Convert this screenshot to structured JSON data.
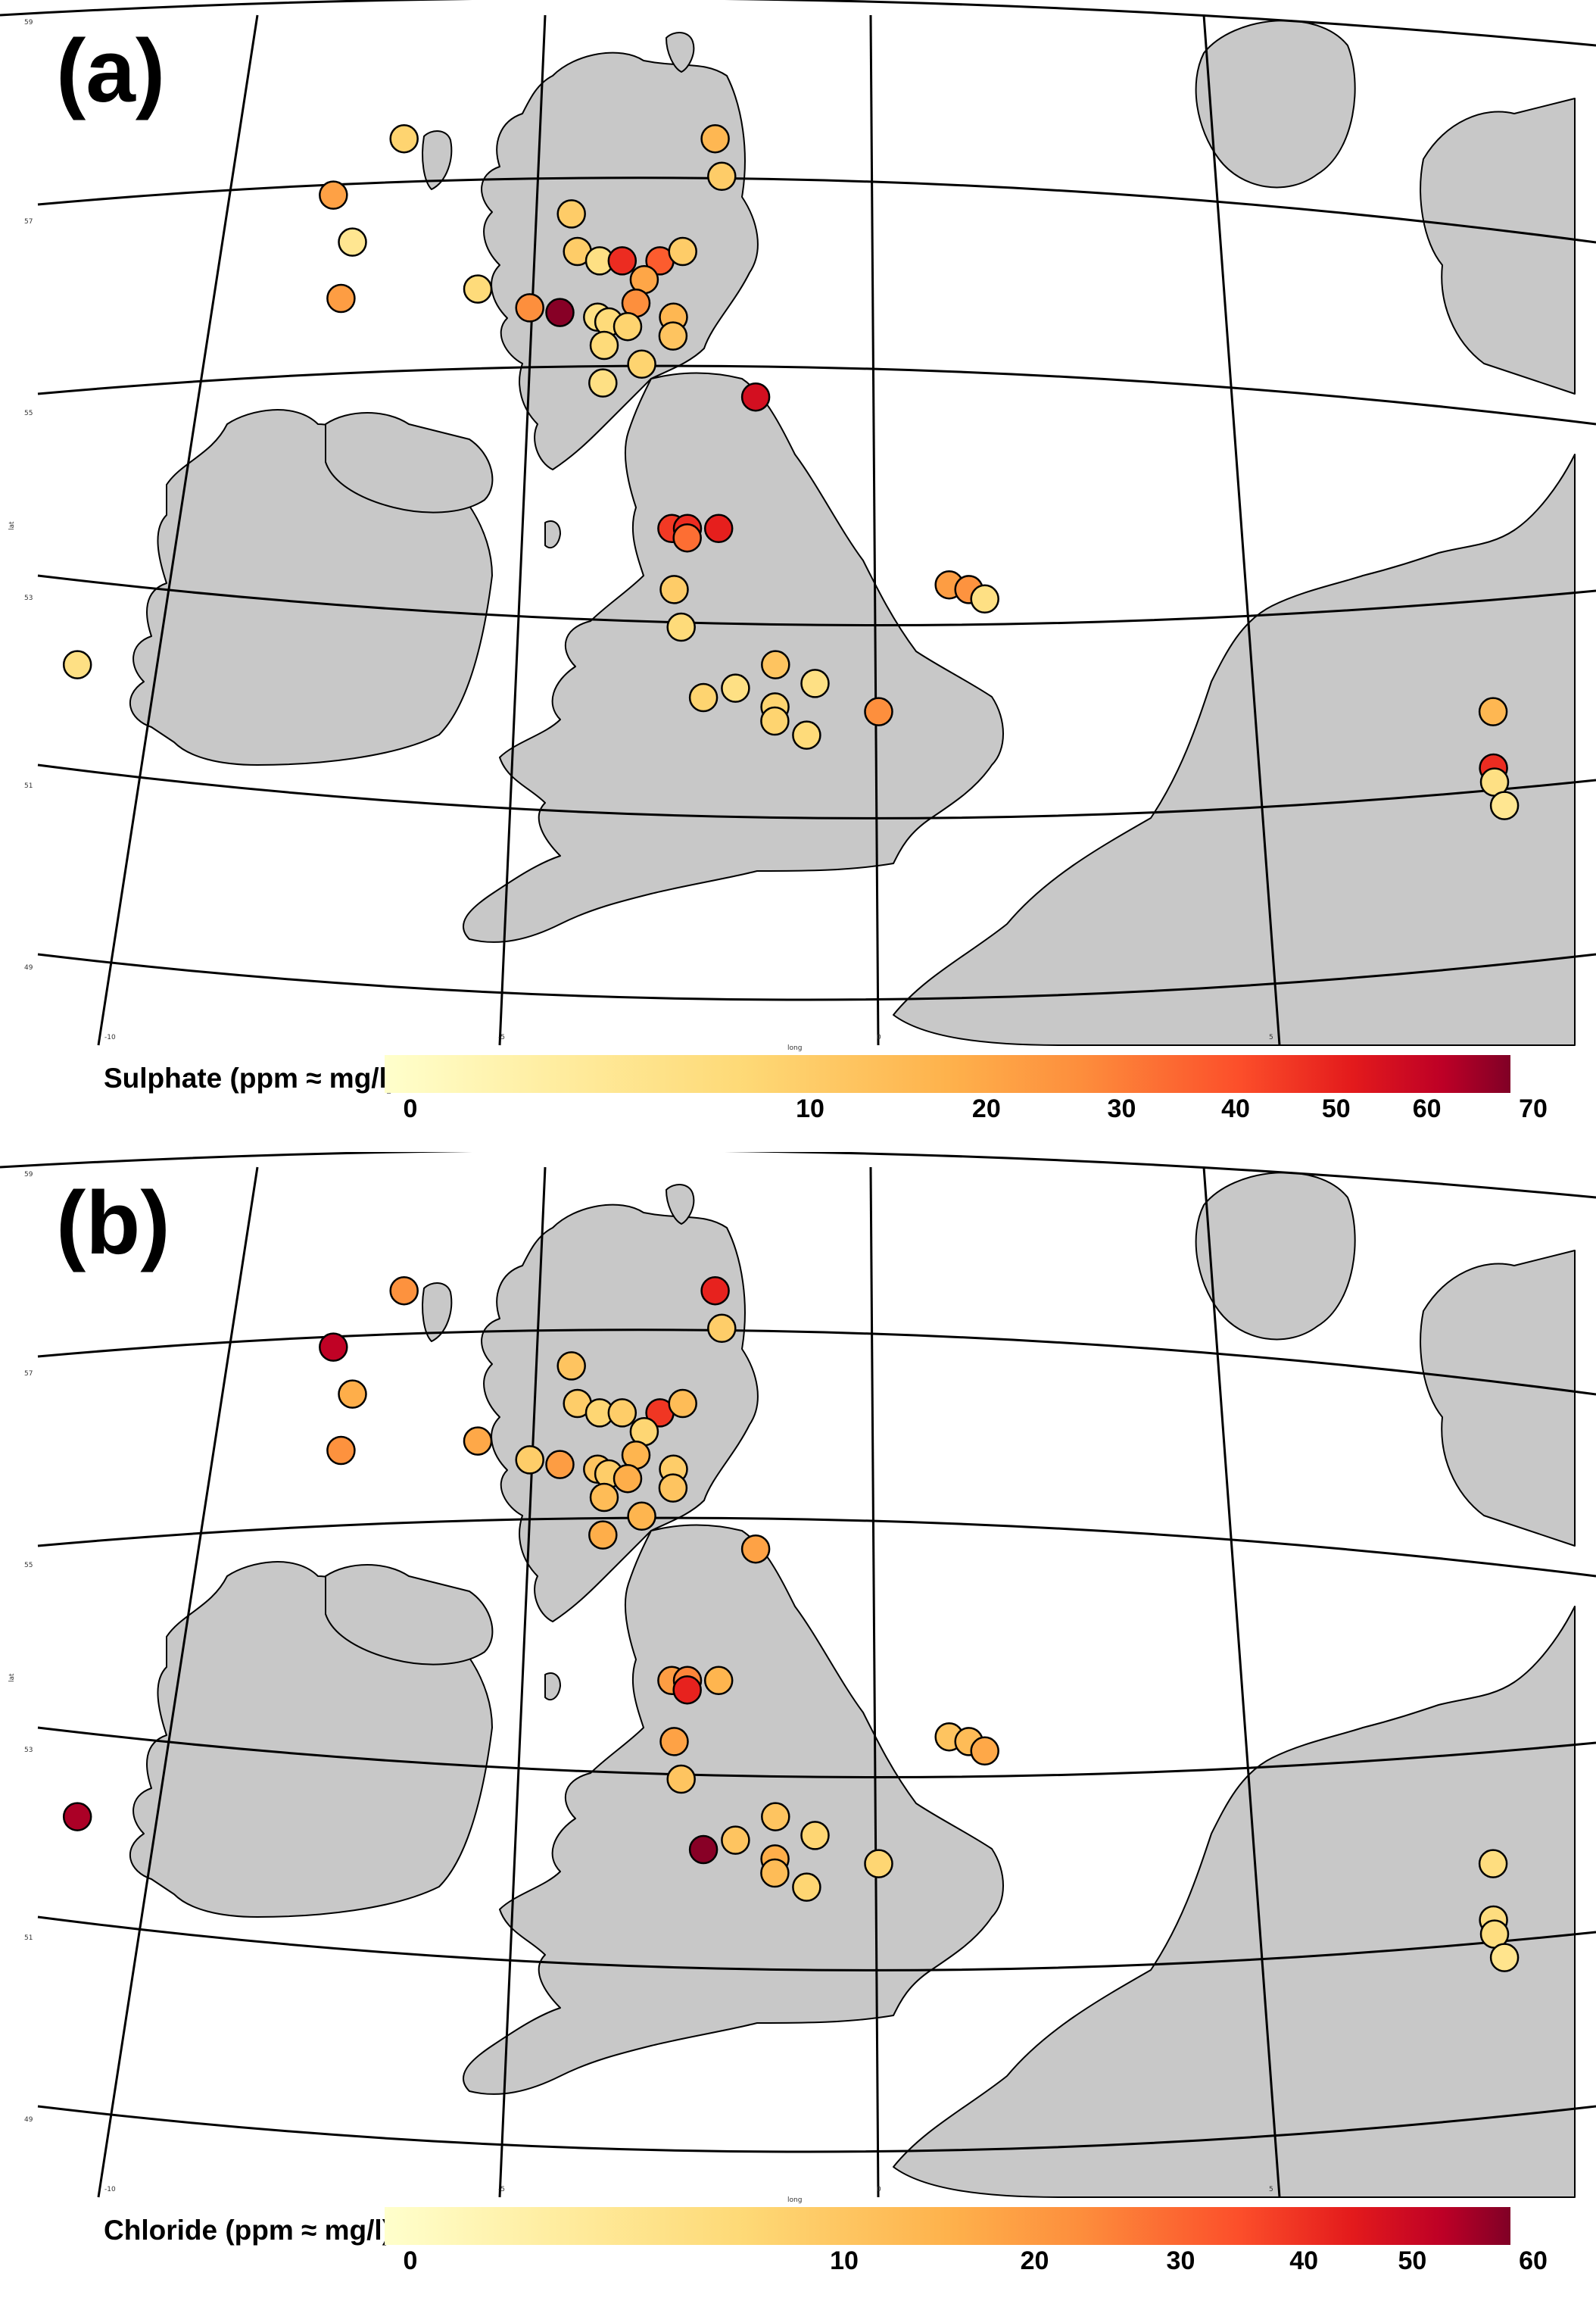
{
  "figure": {
    "panels": [
      {
        "letter": "(a)",
        "colorbar": {
          "title": "Sulphate (ppm ≈ mg/l)",
          "max": 70,
          "ticks": [
            "0",
            "10",
            "20",
            "30",
            "40",
            "50",
            "60",
            "70"
          ]
        },
        "axis": {
          "xlabel": "long",
          "ylabel": "lat",
          "lat_labels": [
            "59",
            "57",
            "55",
            "53",
            "51",
            "49"
          ],
          "lon_labels": [
            "-10",
            "-5",
            "0",
            "5"
          ]
        },
        "sites": [
          {
            "lon": -1.1,
            "lat": 60.3,
            "value": 12
          },
          {
            "lon": -6.3,
            "lat": 57.7,
            "value": 5
          },
          {
            "lon": -7.2,
            "lat": 57.1,
            "value": 13
          },
          {
            "lon": -6.9,
            "lat": 56.6,
            "value": 2
          },
          {
            "lon": -7.0,
            "lat": 56.0,
            "value": 14
          },
          {
            "lon": -2.1,
            "lat": 57.7,
            "value": 9
          },
          {
            "lon": -2.0,
            "lat": 57.3,
            "value": 6
          },
          {
            "lon": -4.0,
            "lat": 56.9,
            "value": 6
          },
          {
            "lon": -3.9,
            "lat": 56.5,
            "value": 6
          },
          {
            "lon": -3.6,
            "lat": 56.4,
            "value": 3
          },
          {
            "lon": -3.3,
            "lat": 56.4,
            "value": 35
          },
          {
            "lon": -2.8,
            "lat": 56.4,
            "value": 25
          },
          {
            "lon": -2.5,
            "lat": 56.5,
            "value": 6
          },
          {
            "lon": -3.0,
            "lat": 56.2,
            "value": 12
          },
          {
            "lon": -3.1,
            "lat": 55.95,
            "value": 17
          },
          {
            "lon": -5.2,
            "lat": 56.1,
            "value": 4
          },
          {
            "lon": -4.5,
            "lat": 55.9,
            "value": 17
          },
          {
            "lon": -4.1,
            "lat": 55.85,
            "value": 68
          },
          {
            "lon": -3.6,
            "lat": 55.8,
            "value": 3
          },
          {
            "lon": -3.45,
            "lat": 55.75,
            "value": 4
          },
          {
            "lon": -3.2,
            "lat": 55.7,
            "value": 5
          },
          {
            "lon": -2.6,
            "lat": 55.8,
            "value": 9
          },
          {
            "lon": -2.6,
            "lat": 55.6,
            "value": 7
          },
          {
            "lon": -3.5,
            "lat": 55.5,
            "value": 4
          },
          {
            "lon": -3.0,
            "lat": 55.3,
            "value": 5
          },
          {
            "lon": -3.5,
            "lat": 55.1,
            "value": 3
          },
          {
            "lon": -1.5,
            "lat": 54.95,
            "value": 45
          },
          {
            "lon": -2.55,
            "lat": 53.55,
            "value": 32
          },
          {
            "lon": -2.35,
            "lat": 53.55,
            "value": 35
          },
          {
            "lon": -2.35,
            "lat": 53.45,
            "value": 22
          },
          {
            "lon": -1.95,
            "lat": 53.55,
            "value": 38
          },
          {
            "lon": -2.5,
            "lat": 52.9,
            "value": 6
          },
          {
            "lon": -2.4,
            "lat": 52.5,
            "value": 4
          },
          {
            "lon": 1.0,
            "lat": 52.95,
            "value": 14
          },
          {
            "lon": 1.25,
            "lat": 52.9,
            "value": 16
          },
          {
            "lon": 1.45,
            "lat": 52.8,
            "value": 3
          },
          {
            "lon": -1.2,
            "lat": 52.1,
            "value": 7
          },
          {
            "lon": -0.7,
            "lat": 51.9,
            "value": 3
          },
          {
            "lon": -1.7,
            "lat": 51.85,
            "value": 3
          },
          {
            "lon": -2.1,
            "lat": 51.75,
            "value": 5
          },
          {
            "lon": -1.2,
            "lat": 51.65,
            "value": 5
          },
          {
            "lon": -1.2,
            "lat": 51.5,
            "value": 5
          },
          {
            "lon": -0.8,
            "lat": 51.35,
            "value": 4
          },
          {
            "lon": 0.1,
            "lat": 51.6,
            "value": 17
          },
          {
            "lon": 7.8,
            "lat": 51.6,
            "value": 9
          },
          {
            "lon": 7.75,
            "lat": 51.0,
            "value": 35
          },
          {
            "lon": 7.75,
            "lat": 50.85,
            "value": 3
          },
          {
            "lon": 7.85,
            "lat": 50.6,
            "value": 2
          },
          {
            "lon": -10.0,
            "lat": 52.1,
            "value": 3
          }
        ]
      },
      {
        "letter": "(b)",
        "colorbar": {
          "title": "Chloride (ppm ≈ mg/l)",
          "max": 60,
          "ticks": [
            "0",
            "10",
            "20",
            "30",
            "40",
            "50",
            "60"
          ]
        },
        "axis": {
          "xlabel": "long",
          "ylabel": "lat",
          "lat_labels": [
            "59",
            "57",
            "55",
            "53",
            "51",
            "49"
          ],
          "lon_labels": [
            "-10",
            "-5",
            "0",
            "5"
          ]
        },
        "sites": [
          {
            "lon": -1.1,
            "lat": 60.3,
            "value": 15
          },
          {
            "lon": -6.3,
            "lat": 57.7,
            "value": 14
          },
          {
            "lon": -7.2,
            "lat": 57.1,
            "value": 45
          },
          {
            "lon": -6.9,
            "lat": 56.6,
            "value": 9
          },
          {
            "lon": -7.0,
            "lat": 56.0,
            "value": 14
          },
          {
            "lon": -2.1,
            "lat": 57.7,
            "value": 32
          },
          {
            "lon": -2.0,
            "lat": 57.3,
            "value": 5
          },
          {
            "lon": -4.0,
            "lat": 56.9,
            "value": 6
          },
          {
            "lon": -3.9,
            "lat": 56.5,
            "value": 5
          },
          {
            "lon": -3.6,
            "lat": 56.4,
            "value": 4
          },
          {
            "lon": -3.3,
            "lat": 56.4,
            "value": 5
          },
          {
            "lon": -2.8,
            "lat": 56.4,
            "value": 28
          },
          {
            "lon": -2.5,
            "lat": 56.5,
            "value": 7
          },
          {
            "lon": -3.0,
            "lat": 56.2,
            "value": 4
          },
          {
            "lon": -3.1,
            "lat": 55.95,
            "value": 8
          },
          {
            "lon": -5.2,
            "lat": 56.1,
            "value": 10
          },
          {
            "lon": -4.5,
            "lat": 55.9,
            "value": 5
          },
          {
            "lon": -4.1,
            "lat": 55.85,
            "value": 12
          },
          {
            "lon": -3.6,
            "lat": 55.8,
            "value": 6
          },
          {
            "lon": -3.45,
            "lat": 55.75,
            "value": 5
          },
          {
            "lon": -3.2,
            "lat": 55.7,
            "value": 9
          },
          {
            "lon": -2.6,
            "lat": 55.8,
            "value": 5
          },
          {
            "lon": -2.6,
            "lat": 55.6,
            "value": 6
          },
          {
            "lon": -3.5,
            "lat": 55.5,
            "value": 7
          },
          {
            "lon": -3.0,
            "lat": 55.3,
            "value": 8
          },
          {
            "lon": -3.5,
            "lat": 55.1,
            "value": 9
          },
          {
            "lon": -1.5,
            "lat": 54.95,
            "value": 11
          },
          {
            "lon": -2.55,
            "lat": 53.55,
            "value": 12
          },
          {
            "lon": -2.35,
            "lat": 53.55,
            "value": 16
          },
          {
            "lon": -2.35,
            "lat": 53.45,
            "value": 32
          },
          {
            "lon": -1.95,
            "lat": 53.55,
            "value": 8
          },
          {
            "lon": -2.5,
            "lat": 52.9,
            "value": 11
          },
          {
            "lon": -2.4,
            "lat": 52.5,
            "value": 6
          },
          {
            "lon": 1.0,
            "lat": 52.95,
            "value": 6
          },
          {
            "lon": 1.25,
            "lat": 52.9,
            "value": 7
          },
          {
            "lon": 1.45,
            "lat": 52.8,
            "value": 10
          },
          {
            "lon": -1.2,
            "lat": 52.1,
            "value": 6
          },
          {
            "lon": -0.7,
            "lat": 51.9,
            "value": 4
          },
          {
            "lon": -1.7,
            "lat": 51.85,
            "value": 6
          },
          {
            "lon": -2.1,
            "lat": 51.75,
            "value": 58
          },
          {
            "lon": -1.2,
            "lat": 51.65,
            "value": 9
          },
          {
            "lon": -1.2,
            "lat": 51.5,
            "value": 7
          },
          {
            "lon": -0.8,
            "lat": 51.35,
            "value": 4
          },
          {
            "lon": 0.1,
            "lat": 51.6,
            "value": 4
          },
          {
            "lon": 7.8,
            "lat": 51.6,
            "value": 3
          },
          {
            "lon": 7.75,
            "lat": 51.0,
            "value": 3
          },
          {
            "lon": 7.75,
            "lat": 50.85,
            "value": 3
          },
          {
            "lon": 7.85,
            "lat": 50.6,
            "value": 2
          },
          {
            "lon": -10.0,
            "lat": 52.1,
            "value": 50
          }
        ]
      }
    ],
    "palette": [
      "#ffffcc",
      "#ffeda0",
      "#fed976",
      "#feb24c",
      "#fd8d3c",
      "#fc4e2a",
      "#e31a1c",
      "#bd0026",
      "#800026"
    ],
    "land_color": "#c8c8c8",
    "gridline_color": "#000000"
  }
}
